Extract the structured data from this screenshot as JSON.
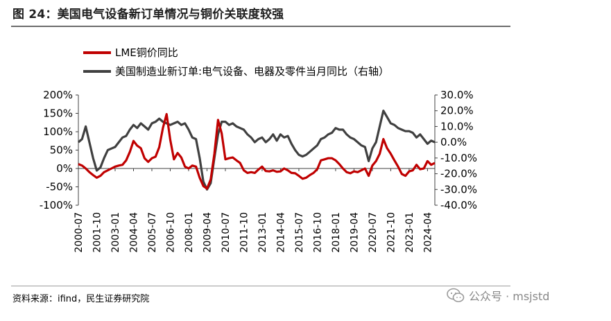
{
  "figure_title": "图 24：美国电气设备新订单情况与铜价关联度较强",
  "source": "资料来源：ifind，民生证券研究院",
  "watermark": "公众号 · msjstd",
  "colors": {
    "copper": "#c00000",
    "orders": "#404040",
    "axis": "#404040"
  },
  "chart_data": {
    "type": "line",
    "title": "",
    "x_ticks": [
      "2000-07",
      "2001-10",
      "2003-01",
      "2004-04",
      "2005-07",
      "2006-10",
      "2008-01",
      "2009-04",
      "2010-07",
      "2011-10",
      "2013-01",
      "2014-04",
      "2015-07",
      "2016-10",
      "2018-01",
      "2019-04",
      "2020-07",
      "2021-10",
      "2023-01",
      "2024-04"
    ],
    "y_left": {
      "min": -100,
      "max": 200,
      "ticks": [
        "200%",
        "150%",
        "100%",
        "50%",
        "0%",
        "-50%",
        "-100%"
      ]
    },
    "y_right": {
      "min": -40,
      "max": 30,
      "ticks": [
        "30.0%",
        "20.0%",
        "10.0%",
        "0.0%",
        "-10.0%",
        "-20.0%",
        "-30.0%",
        "-40.0%"
      ]
    },
    "legend": "top-left",
    "series": [
      {
        "name": "LME铜价同比",
        "axis": "left",
        "color": "#c00000",
        "points": [
          [
            "2000-07",
            12
          ],
          [
            "2000-10",
            8
          ],
          [
            "2001-01",
            0
          ],
          [
            "2001-04",
            -10
          ],
          [
            "2001-07",
            -18
          ],
          [
            "2001-10",
            -25
          ],
          [
            "2002-01",
            -20
          ],
          [
            "2002-04",
            -10
          ],
          [
            "2002-07",
            -5
          ],
          [
            "2002-10",
            0
          ],
          [
            "2003-01",
            5
          ],
          [
            "2003-04",
            8
          ],
          [
            "2003-07",
            10
          ],
          [
            "2003-10",
            22
          ],
          [
            "2004-01",
            45
          ],
          [
            "2004-04",
            75
          ],
          [
            "2004-07",
            62
          ],
          [
            "2004-10",
            55
          ],
          [
            "2005-01",
            28
          ],
          [
            "2005-04",
            18
          ],
          [
            "2005-07",
            28
          ],
          [
            "2005-10",
            32
          ],
          [
            "2006-01",
            58
          ],
          [
            "2006-04",
            110
          ],
          [
            "2006-07",
            148
          ],
          [
            "2006-10",
            78
          ],
          [
            "2007-01",
            25
          ],
          [
            "2007-04",
            42
          ],
          [
            "2007-07",
            30
          ],
          [
            "2007-10",
            5
          ],
          [
            "2008-01",
            0
          ],
          [
            "2008-04",
            8
          ],
          [
            "2008-07",
            5
          ],
          [
            "2008-10",
            -25
          ],
          [
            "2009-01",
            -48
          ],
          [
            "2009-04",
            -55
          ],
          [
            "2009-07",
            -30
          ],
          [
            "2009-10",
            40
          ],
          [
            "2010-01",
            132
          ],
          [
            "2010-04",
            95
          ],
          [
            "2010-07",
            25
          ],
          [
            "2010-10",
            28
          ],
          [
            "2011-01",
            30
          ],
          [
            "2011-04",
            22
          ],
          [
            "2011-07",
            15
          ],
          [
            "2011-10",
            -5
          ],
          [
            "2012-01",
            -12
          ],
          [
            "2012-04",
            -10
          ],
          [
            "2012-07",
            -12
          ],
          [
            "2012-10",
            -3
          ],
          [
            "2013-01",
            5
          ],
          [
            "2013-04",
            -7
          ],
          [
            "2013-07",
            -8
          ],
          [
            "2013-10",
            -5
          ],
          [
            "2014-01",
            -9
          ],
          [
            "2014-04",
            -8
          ],
          [
            "2014-07",
            0
          ],
          [
            "2014-10",
            -5
          ],
          [
            "2015-01",
            -12
          ],
          [
            "2015-04",
            -13
          ],
          [
            "2015-07",
            -20
          ],
          [
            "2015-10",
            -28
          ],
          [
            "2016-01",
            -25
          ],
          [
            "2016-04",
            -18
          ],
          [
            "2016-07",
            -12
          ],
          [
            "2016-10",
            -2
          ],
          [
            "2017-01",
            22
          ],
          [
            "2017-04",
            25
          ],
          [
            "2017-07",
            28
          ],
          [
            "2017-10",
            28
          ],
          [
            "2018-01",
            22
          ],
          [
            "2018-04",
            12
          ],
          [
            "2018-07",
            0
          ],
          [
            "2018-10",
            -10
          ],
          [
            "2019-01",
            -13
          ],
          [
            "2019-04",
            -8
          ],
          [
            "2019-07",
            -10
          ],
          [
            "2019-10",
            -5
          ],
          [
            "2020-01",
            0
          ],
          [
            "2020-04",
            -20
          ],
          [
            "2020-07",
            8
          ],
          [
            "2020-10",
            20
          ],
          [
            "2021-01",
            40
          ],
          [
            "2021-04",
            80
          ],
          [
            "2021-07",
            55
          ],
          [
            "2021-10",
            40
          ],
          [
            "2022-01",
            22
          ],
          [
            "2022-04",
            5
          ],
          [
            "2022-07",
            -15
          ],
          [
            "2022-10",
            -20
          ],
          [
            "2023-01",
            -8
          ],
          [
            "2023-04",
            -5
          ],
          [
            "2023-07",
            10
          ],
          [
            "2023-10",
            -2
          ],
          [
            "2024-01",
            0
          ],
          [
            "2024-04",
            20
          ],
          [
            "2024-07",
            10
          ],
          [
            "2024-10",
            15
          ]
        ]
      },
      {
        "name": "美国制造业新订单:电气设备、电器及零件当月同比（右轴）",
        "axis": "right",
        "color": "#404040",
        "points": [
          [
            "2000-07",
            0
          ],
          [
            "2000-10",
            2
          ],
          [
            "2001-01",
            10
          ],
          [
            "2001-04",
            0
          ],
          [
            "2001-07",
            -10
          ],
          [
            "2001-10",
            -18
          ],
          [
            "2002-01",
            -16
          ],
          [
            "2002-04",
            -10
          ],
          [
            "2002-07",
            -5
          ],
          [
            "2002-10",
            -4
          ],
          [
            "2003-01",
            -3
          ],
          [
            "2003-04",
            0
          ],
          [
            "2003-07",
            3
          ],
          [
            "2003-10",
            4
          ],
          [
            "2004-01",
            8
          ],
          [
            "2004-04",
            11
          ],
          [
            "2004-07",
            9
          ],
          [
            "2004-10",
            12
          ],
          [
            "2005-01",
            10
          ],
          [
            "2005-04",
            8
          ],
          [
            "2005-07",
            12
          ],
          [
            "2005-10",
            13
          ],
          [
            "2006-01",
            15
          ],
          [
            "2006-04",
            13
          ],
          [
            "2006-07",
            12
          ],
          [
            "2006-10",
            11
          ],
          [
            "2007-01",
            12
          ],
          [
            "2007-04",
            13
          ],
          [
            "2007-07",
            11
          ],
          [
            "2007-10",
            12
          ],
          [
            "2008-01",
            8
          ],
          [
            "2008-04",
            3
          ],
          [
            "2008-07",
            2
          ],
          [
            "2008-10",
            -10
          ],
          [
            "2009-01",
            -25
          ],
          [
            "2009-04",
            -30
          ],
          [
            "2009-07",
            -26
          ],
          [
            "2009-10",
            -10
          ],
          [
            "2010-01",
            5
          ],
          [
            "2010-04",
            13
          ],
          [
            "2010-07",
            13
          ],
          [
            "2010-10",
            11
          ],
          [
            "2011-01",
            12
          ],
          [
            "2011-04",
            10
          ],
          [
            "2011-07",
            9
          ],
          [
            "2011-10",
            8
          ],
          [
            "2012-01",
            5
          ],
          [
            "2012-04",
            3
          ],
          [
            "2012-07",
            0
          ],
          [
            "2012-10",
            2
          ],
          [
            "2013-01",
            3
          ],
          [
            "2013-04",
            0
          ],
          [
            "2013-07",
            2
          ],
          [
            "2013-10",
            5
          ],
          [
            "2014-01",
            1
          ],
          [
            "2014-04",
            5
          ],
          [
            "2014-07",
            3
          ],
          [
            "2014-10",
            4
          ],
          [
            "2015-01",
            -1
          ],
          [
            "2015-04",
            -5
          ],
          [
            "2015-07",
            -8
          ],
          [
            "2015-10",
            -9
          ],
          [
            "2016-01",
            -8
          ],
          [
            "2016-04",
            -6
          ],
          [
            "2016-07",
            -4
          ],
          [
            "2016-10",
            -2
          ],
          [
            "2017-01",
            2
          ],
          [
            "2017-04",
            3
          ],
          [
            "2017-07",
            5
          ],
          [
            "2017-10",
            6
          ],
          [
            "2018-01",
            9
          ],
          [
            "2018-04",
            8
          ],
          [
            "2018-07",
            8
          ],
          [
            "2018-10",
            5
          ],
          [
            "2019-01",
            3
          ],
          [
            "2019-04",
            2
          ],
          [
            "2019-07",
            0
          ],
          [
            "2019-10",
            -2
          ],
          [
            "2020-01",
            -3
          ],
          [
            "2020-04",
            -12
          ],
          [
            "2020-07",
            -4
          ],
          [
            "2020-10",
            0
          ],
          [
            "2021-01",
            10
          ],
          [
            "2021-04",
            20
          ],
          [
            "2021-07",
            16
          ],
          [
            "2021-10",
            12
          ],
          [
            "2022-01",
            11
          ],
          [
            "2022-04",
            9
          ],
          [
            "2022-07",
            8
          ],
          [
            "2022-10",
            7
          ],
          [
            "2023-01",
            7
          ],
          [
            "2023-04",
            6
          ],
          [
            "2023-07",
            3
          ],
          [
            "2023-10",
            5
          ],
          [
            "2024-01",
            2
          ],
          [
            "2024-04",
            -1
          ],
          [
            "2024-07",
            1
          ],
          [
            "2024-10",
            0
          ]
        ]
      }
    ]
  }
}
